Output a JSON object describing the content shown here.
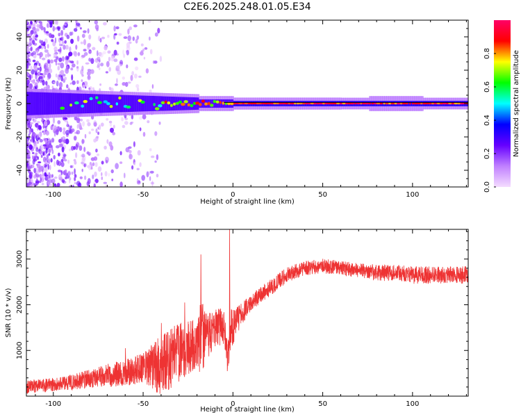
{
  "title": "C2E6.2025.248.01.05.E34",
  "chart_data": [
    {
      "type": "heatmap",
      "xlabel": "Height of straight line (km)",
      "ylabel": "Frequency (Hz)",
      "xlim": [
        -115,
        131
      ],
      "ylim": [
        -50,
        50
      ],
      "xticks": [
        -100,
        -50,
        0,
        50,
        100
      ],
      "yticks": [
        -40,
        -20,
        0,
        20,
        40
      ],
      "xtick_labels": [
        "-100",
        "-50",
        "0",
        "50",
        "100"
      ],
      "ytick_labels": [
        "-40",
        "-20",
        "0",
        "20",
        "40"
      ],
      "line_at_frequency": 0,
      "colorbar": {
        "label": "Normalized spectral amplitude",
        "range": [
          0,
          1
        ],
        "ticks": [
          0.0,
          0.2,
          0.4,
          0.6,
          0.8
        ],
        "tick_labels": [
          "0.0",
          "0.2",
          "0.4",
          "0.6",
          "0.8"
        ],
        "colors": [
          "#f4dcff",
          "#c080ff",
          "#6600ff",
          "#0000ff",
          "#00ffff",
          "#00ff00",
          "#ffff00",
          "#ff0000",
          "#ff0066"
        ]
      }
    },
    {
      "type": "line",
      "xlabel": "Height of straight line (km)",
      "ylabel": "SNR (10 * v/v)",
      "xlim": [
        -115,
        131
      ],
      "ylim": [
        0,
        3650
      ],
      "xticks": [
        -100,
        -50,
        0,
        50,
        100
      ],
      "yticks": [
        1000,
        2000,
        3000
      ],
      "xtick_labels": [
        "-100",
        "-50",
        "0",
        "50",
        "100"
      ],
      "ytick_labels": [
        "1000",
        "2000",
        "3000"
      ],
      "series": [
        {
          "name": "SNR",
          "color": "#ee3333",
          "x": [
            -115,
            -100,
            -90,
            -80,
            -70,
            -60,
            -50,
            -45,
            -40,
            -35,
            -30,
            -25,
            -20,
            -18,
            -15,
            -10,
            -5,
            -3,
            -1,
            2,
            5,
            10,
            20,
            30,
            40,
            50,
            60,
            70,
            80,
            90,
            100,
            110,
            120,
            131
          ],
          "y": [
            200,
            250,
            300,
            380,
            450,
            520,
            600,
            650,
            700,
            800,
            950,
            1050,
            1150,
            1300,
            1300,
            1450,
            1550,
            800,
            1500,
            1650,
            1800,
            2050,
            2350,
            2650,
            2800,
            2850,
            2800,
            2750,
            2700,
            2700,
            2650,
            2650,
            2650,
            2650
          ],
          "spread": [
            150,
            150,
            170,
            200,
            250,
            300,
            350,
            500,
            700,
            700,
            650,
            600,
            550,
            900,
            500,
            450,
            400,
            300,
            500,
            300,
            250,
            180,
            180,
            170,
            160,
            160,
            160,
            160,
            180,
            180,
            190,
            190,
            190,
            190
          ],
          "spikes": [
            {
              "x": -2,
              "y": 3650
            },
            {
              "x": -18,
              "y": 3100
            },
            {
              "x": -40,
              "y": 1600
            },
            {
              "x": -27,
              "y": 2050
            },
            {
              "x": -60,
              "y": 1050
            }
          ]
        }
      ]
    }
  ]
}
